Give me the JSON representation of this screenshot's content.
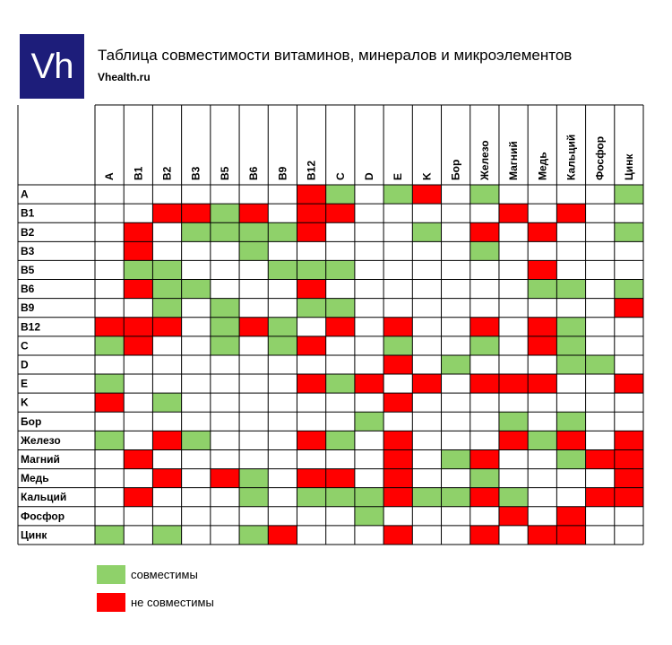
{
  "header": {
    "logo_text": "Vh",
    "title": "Таблица совместимости витаминов, минералов и микроэлементов",
    "site": "Vhealth.ru"
  },
  "colors": {
    "compatible": "#8fd16a",
    "incompatible": "#ff0000",
    "grid": "#000000"
  },
  "legend": {
    "compatible_label": "совместимы",
    "incompatible_label": "не совместимы"
  },
  "chart_data": {
    "type": "heatmap",
    "title": "Таблица совместимости витаминов, минералов и микроэлементов",
    "columns": [
      "A",
      "B1",
      "B2",
      "B3",
      "B5",
      "B6",
      "B9",
      "B12",
      "C",
      "D",
      "E",
      "K",
      "Бор",
      "Железо",
      "Магний",
      "Медь",
      "Кальций",
      "Фосфор",
      "Цинк"
    ],
    "rows": [
      "A",
      "B1",
      "B2",
      "B3",
      "B5",
      "B6",
      "B9",
      "B12",
      "C",
      "D",
      "E",
      "K",
      "Бор",
      "Железо",
      "Магний",
      "Медь",
      "Кальций",
      "Фосфор",
      "Цинк"
    ],
    "legend": {
      "g": "совместимы",
      "r": "не совместимы"
    },
    "cells": [
      [
        "",
        "",
        "",
        "",
        "",
        "",
        "",
        "r",
        "g",
        "",
        "g",
        "r",
        "",
        "g",
        "",
        "",
        "",
        "",
        "g"
      ],
      [
        "",
        "",
        "r",
        "r",
        "g",
        "r",
        "",
        "r",
        "r",
        "",
        "",
        "",
        "",
        "",
        "r",
        "",
        "r",
        "",
        ""
      ],
      [
        "",
        "r",
        "",
        "g",
        "g",
        "g",
        "g",
        "r",
        "",
        "",
        "",
        "g",
        "",
        "r",
        "",
        "r",
        "",
        "",
        "g"
      ],
      [
        "",
        "r",
        "",
        "",
        "",
        "g",
        "",
        "",
        "",
        "",
        "",
        "",
        "",
        "g",
        "",
        "",
        "",
        "",
        ""
      ],
      [
        "",
        "g",
        "g",
        "",
        "",
        "",
        "g",
        "g",
        "g",
        "",
        "",
        "",
        "",
        "",
        "",
        "r",
        "",
        "",
        ""
      ],
      [
        "",
        "r",
        "g",
        "g",
        "",
        "",
        "",
        "r",
        "",
        "",
        "",
        "",
        "",
        "",
        "",
        "g",
        "g",
        "",
        "g"
      ],
      [
        "",
        "",
        "g",
        "",
        "g",
        "",
        "",
        "g",
        "g",
        "",
        "",
        "",
        "",
        "",
        "",
        "",
        "",
        "",
        "r"
      ],
      [
        "r",
        "r",
        "r",
        "",
        "g",
        "r",
        "g",
        "",
        "r",
        "",
        "r",
        "",
        "",
        "r",
        "",
        "r",
        "g",
        "",
        ""
      ],
      [
        "g",
        "r",
        "",
        "",
        "g",
        "",
        "g",
        "r",
        "",
        "",
        "g",
        "",
        "",
        "g",
        "",
        "r",
        "g",
        "",
        ""
      ],
      [
        "",
        "",
        "",
        "",
        "",
        "",
        "",
        "",
        "",
        "",
        "r",
        "",
        "g",
        "",
        "",
        "",
        "g",
        "g",
        ""
      ],
      [
        "g",
        "",
        "",
        "",
        "",
        "",
        "",
        "r",
        "g",
        "r",
        "",
        "r",
        "",
        "r",
        "r",
        "r",
        "",
        "",
        "r"
      ],
      [
        "r",
        "",
        "g",
        "",
        "",
        "",
        "",
        "",
        "",
        "",
        "r",
        "",
        "",
        "",
        "",
        "",
        "",
        "",
        ""
      ],
      [
        "",
        "",
        "",
        "",
        "",
        "",
        "",
        "",
        "",
        "g",
        "",
        "",
        "",
        "",
        "g",
        "",
        "g",
        "",
        ""
      ],
      [
        "g",
        "",
        "r",
        "g",
        "",
        "",
        "",
        "r",
        "g",
        "",
        "r",
        "",
        "",
        "",
        "r",
        "g",
        "r",
        "",
        "r"
      ],
      [
        "",
        "r",
        "",
        "",
        "",
        "",
        "",
        "",
        "",
        "",
        "r",
        "",
        "g",
        "r",
        "",
        "",
        "g",
        "r",
        "r"
      ],
      [
        "",
        "",
        "r",
        "",
        "r",
        "g",
        "",
        "r",
        "r",
        "",
        "r",
        "",
        "",
        "g",
        "",
        "",
        "",
        "",
        "r"
      ],
      [
        "",
        "r",
        "",
        "",
        "",
        "g",
        "",
        "g",
        "g",
        "g",
        "r",
        "g",
        "g",
        "r",
        "g",
        "",
        "",
        "r",
        "r"
      ],
      [
        "",
        "",
        "",
        "",
        "",
        "",
        "",
        "",
        "",
        "g",
        "",
        "",
        "",
        "",
        "r",
        "",
        "r",
        "",
        ""
      ],
      [
        "g",
        "",
        "g",
        "",
        "",
        "g",
        "r",
        "",
        "",
        "",
        "r",
        "",
        "",
        "r",
        "",
        "r",
        "r",
        "",
        ""
      ]
    ]
  }
}
